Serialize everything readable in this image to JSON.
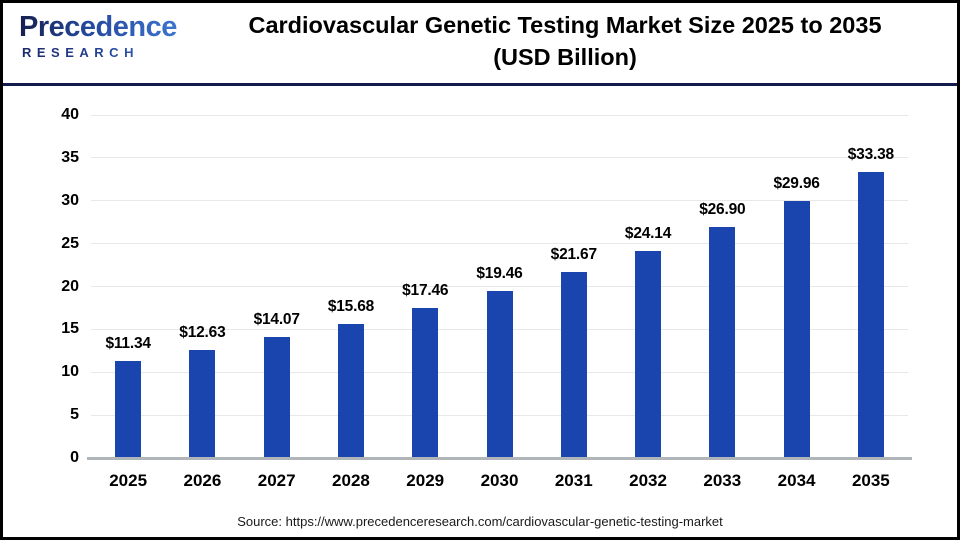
{
  "header": {
    "logo": {
      "line1": "Precedence",
      "line2": "RESEARCH"
    },
    "title_line1": "Cardiovascular Genetic Testing Market Size 2025 to 2035",
    "title_line2": "(USD Billion)"
  },
  "chart_data": {
    "type": "bar",
    "title": "Cardiovascular Genetic Testing Market Size 2025 to 2035 (USD Billion)",
    "categories": [
      "2025",
      "2026",
      "2027",
      "2028",
      "2029",
      "2030",
      "2031",
      "2032",
      "2033",
      "2034",
      "2035"
    ],
    "values": [
      11.34,
      12.63,
      14.07,
      15.68,
      17.46,
      19.46,
      21.67,
      24.14,
      26.9,
      29.96,
      33.38
    ],
    "value_labels": [
      "$11.34",
      "$12.63",
      "$14.07",
      "$15.68",
      "$17.46",
      "$19.46",
      "$21.67",
      "$24.14",
      "$26.90",
      "$29.96",
      "$33.38"
    ],
    "xlabel": "",
    "ylabel": "",
    "ylim": [
      0,
      40
    ],
    "yticks": [
      0,
      5,
      10,
      15,
      20,
      25,
      30,
      35,
      40
    ],
    "grid": true,
    "legend": false,
    "bar_color": "#1b45ae",
    "grid_color": "#e8e8e8",
    "axis_color": "#b0b5ba",
    "label_color": "#000000"
  },
  "footer": {
    "source_text": "Source: https://www.precedenceresearch.com/cardiovascular-genetic-testing-market"
  }
}
